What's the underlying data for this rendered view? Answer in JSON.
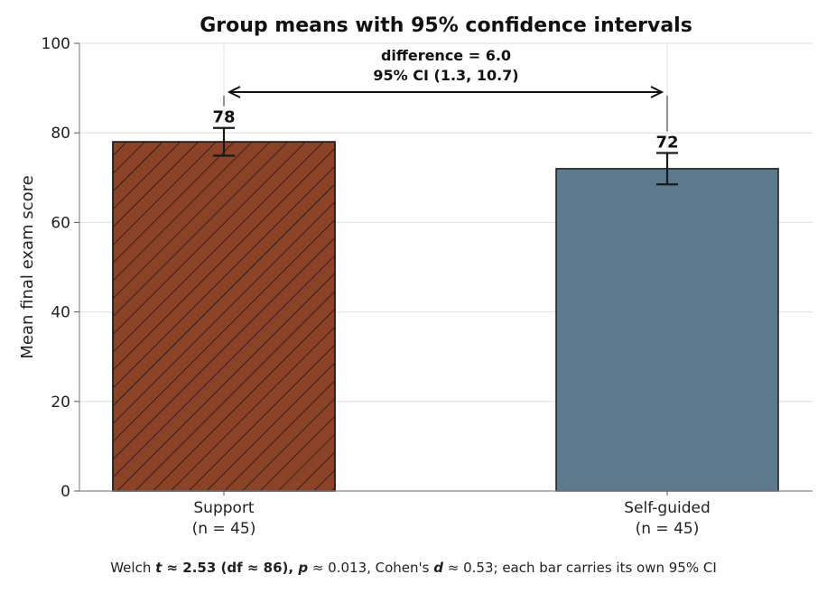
{
  "chart_data": {
    "type": "bar",
    "title": "Group means with 95% confidence intervals",
    "xlabel": "",
    "ylabel": "Mean final exam score",
    "ylim": [
      0,
      100
    ],
    "yticks": [
      "0",
      "20",
      "40",
      "60",
      "80",
      "100"
    ],
    "grid": "horizontal",
    "categories": [
      {
        "name": "Support",
        "n_label": "(n = 45)"
      },
      {
        "name": "Self-guided",
        "n_label": "(n = 45)"
      }
    ],
    "values": [
      78,
      72
    ],
    "value_labels": [
      "78",
      "72"
    ],
    "ci": [
      [
        74.9,
        81.1
      ],
      [
        68.5,
        75.5
      ]
    ],
    "colors": [
      "#8B4226",
      "#5B7A8D"
    ],
    "hatch": [
      "diagonal",
      "none"
    ],
    "annotation": {
      "line1": "difference = 6.0",
      "line2": "95% CI (1.3, 10.7)"
    },
    "footnote": {
      "p1": "Welch ",
      "t_sym": "t",
      "p2": " ≈ 2.53 (df  ≈ 86), ",
      "p_sym": "p",
      "p3": " ≈ 0.013, Cohen's ",
      "d_sym": "d",
      "p4": " ≈ 0.53; each bar carries its own 95% CI"
    }
  }
}
